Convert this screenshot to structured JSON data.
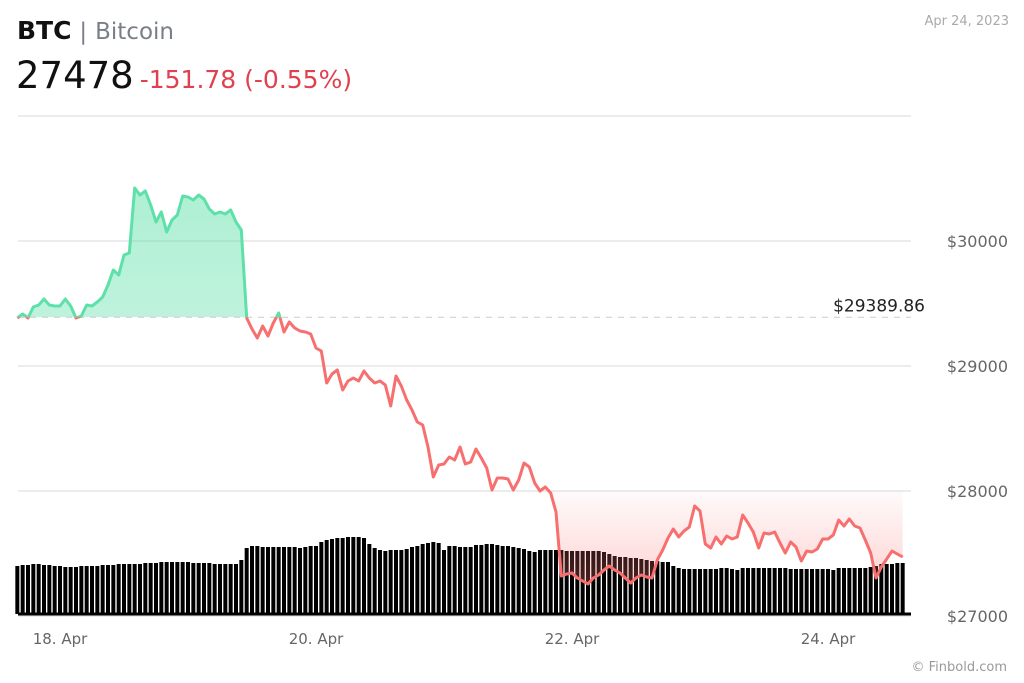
{
  "header": {
    "symbol": "BTC",
    "separator": "|",
    "name": "Bitcoin",
    "price": "27478",
    "change": "-151.78 (-0.55%)",
    "date": "Apr 24, 2023"
  },
  "footer": {
    "credit": "© Finbold.com"
  },
  "chart_data": {
    "type": "line",
    "title": "",
    "xlabel": "",
    "ylabel": "",
    "ylim": [
      27000,
      31000
    ],
    "y_ticks": [
      {
        "value": 27000,
        "label": "$27000"
      },
      {
        "value": 28000,
        "label": "$28000"
      },
      {
        "value": 29000,
        "label": "$29000"
      },
      {
        "value": 30000,
        "label": "$30000"
      }
    ],
    "x_ticks": [
      {
        "value": "04-18 00:00",
        "label": "18. Apr"
      },
      {
        "value": "04-20 00:00",
        "label": "20. Apr"
      },
      {
        "value": "04-22 00:00",
        "label": "22. Apr"
      },
      {
        "value": "04-24 00:00",
        "label": "24. Apr"
      }
    ],
    "grid": true,
    "reference": {
      "value": 29389.86,
      "label": "$29389.86"
    },
    "colors": {
      "up": "#5ee0a9",
      "down": "#f76f6f",
      "volume": "#000000",
      "grid": "#e6e6e6"
    },
    "x_start": "04-17 16:00",
    "x_interval": "1 hour",
    "price": [
      29384,
      29416,
      29384,
      29472,
      29488,
      29536,
      29488,
      29480,
      29480,
      29536,
      29480,
      29384,
      29400,
      29488,
      29480,
      29512,
      29552,
      29648,
      29768,
      29728,
      29888,
      29904,
      30424,
      30368,
      30400,
      30288,
      30152,
      30232,
      30072,
      30168,
      30208,
      30360,
      30352,
      30328,
      30368,
      30336,
      30256,
      30216,
      30232,
      30216,
      30248,
      30152,
      30088,
      29384,
      29296,
      29224,
      29320,
      29240,
      29344,
      29424,
      29272,
      29352,
      29304,
      29280,
      29272,
      29256,
      29144,
      29120,
      28864,
      28936,
      28968,
      28808,
      28880,
      28904,
      28880,
      28960,
      28904,
      28864,
      28880,
      28848,
      28680,
      28920,
      28840,
      28728,
      28648,
      28552,
      28528,
      28352,
      28112,
      28208,
      28216,
      28272,
      28248,
      28352,
      28216,
      28232,
      28336,
      28264,
      28184,
      28008,
      28104,
      28104,
      28096,
      28008,
      28088,
      28224,
      28192,
      28064,
      28000,
      28032,
      27984,
      27832,
      27320,
      27336,
      27344,
      27304,
      27280,
      27256,
      27304,
      27328,
      27368,
      27400,
      27368,
      27344,
      27304,
      27264,
      27304,
      27328,
      27312,
      27304,
      27448,
      27528,
      27624,
      27696,
      27632,
      27680,
      27712,
      27880,
      27840,
      27576,
      27544,
      27632,
      27576,
      27640,
      27616,
      27632,
      27808,
      27744,
      27672,
      27544,
      27664,
      27656,
      27672,
      27584,
      27504,
      27592,
      27552,
      27440,
      27520,
      27512,
      27536,
      27616,
      27616,
      27648,
      27768,
      27720,
      27776,
      27720,
      27704,
      27608,
      27504,
      27304,
      27392,
      27456,
      27520,
      27496,
      27472
    ],
    "volume_relative": [
      48,
      49,
      49,
      50,
      50,
      49,
      49,
      48,
      48,
      47,
      47,
      47,
      48,
      48,
      48,
      48,
      49,
      49,
      49,
      50,
      50,
      50,
      50,
      50,
      51,
      51,
      51,
      52,
      52,
      52,
      52,
      52,
      52,
      51,
      51,
      51,
      51,
      50,
      50,
      50,
      50,
      50,
      54,
      66,
      68,
      68,
      67,
      67,
      67,
      67,
      67,
      67,
      67,
      66,
      67,
      68,
      68,
      72,
      74,
      75,
      76,
      76,
      77,
      77,
      77,
      76,
      70,
      66,
      64,
      63,
      64,
      64,
      64,
      65,
      67,
      68,
      70,
      71,
      72,
      71,
      64,
      68,
      68,
      67,
      67,
      67,
      69,
      69,
      70,
      70,
      69,
      68,
      68,
      67,
      66,
      65,
      63,
      62,
      64,
      64,
      64,
      64,
      64,
      63,
      63,
      63,
      63,
      63,
      63,
      63,
      62,
      60,
      58,
      57,
      57,
      56,
      56,
      55,
      54,
      53,
      53,
      52,
      52,
      48,
      46,
      45,
      45,
      45,
      45,
      45,
      45,
      45,
      46,
      46,
      45,
      44,
      46,
      46,
      46,
      46,
      46,
      46,
      46,
      46,
      46,
      45,
      45,
      45,
      45,
      45,
      45,
      45,
      45,
      44,
      46,
      46,
      46,
      46,
      46,
      46,
      47,
      48,
      50,
      50,
      50,
      51,
      51
    ]
  }
}
